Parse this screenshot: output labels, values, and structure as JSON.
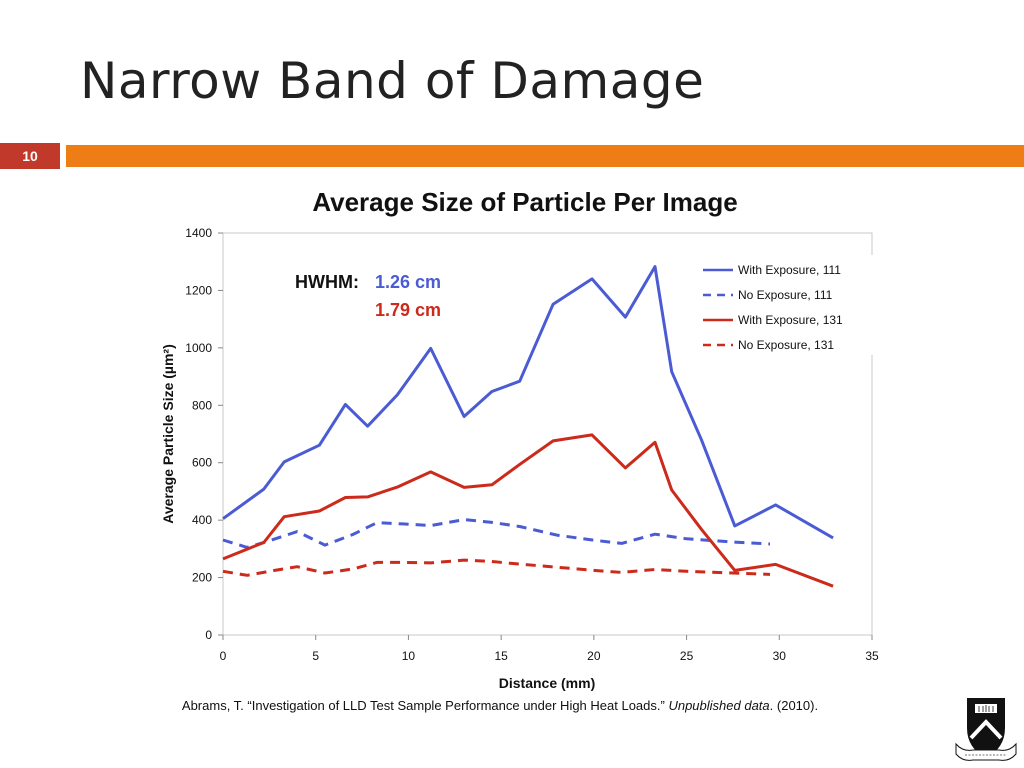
{
  "slide": {
    "title": "Narrow Band of Damage",
    "number": "10",
    "colors": {
      "number_box": "#C0392B",
      "accent_bar": "#EE7D16"
    }
  },
  "citation": {
    "prefix": "Abrams, T. “Investigation of LLD Test Sample Performance under High Heat Loads.” ",
    "source": "Unpublished data",
    "suffix": ". (2010)."
  },
  "logo": {
    "name": "university-crest",
    "motto": "DEI SUB NUMINE VIGET"
  },
  "chart_data": {
    "type": "line",
    "title": "Average Size of Particle Per Image",
    "xlabel": "Distance (mm)",
    "ylabel": "Average Particle Size (µm²)",
    "xlim": [
      0,
      35
    ],
    "ylim": [
      0,
      1400
    ],
    "x_ticks": [
      0,
      5,
      10,
      15,
      20,
      25,
      30,
      35
    ],
    "y_ticks": [
      0,
      200,
      400,
      600,
      800,
      1000,
      1200,
      1400
    ],
    "grid": false,
    "legend_position": "top-right",
    "annotation": {
      "label": "HWHM:",
      "values": [
        {
          "text": "1.26 cm",
          "color": "#4A5BD4"
        },
        {
          "text": "1.79 cm",
          "color": "#CC2A1A"
        }
      ]
    },
    "series": [
      {
        "name": "With Exposure, 111",
        "color": "#4A5BD4",
        "dash": "solid",
        "x": [
          0,
          2.2,
          3.3,
          5.2,
          6.6,
          7.8,
          9.4,
          11.2,
          13,
          14.5,
          16,
          17.8,
          19.9,
          21.7,
          23.3,
          24.2,
          25.8,
          27.6,
          29.8,
          32.9
        ],
        "y": [
          405,
          508,
          603,
          661,
          803,
          727,
          836,
          998,
          761,
          848,
          884,
          1152,
          1240,
          1107,
          1283,
          917,
          680,
          380,
          453,
          338
        ]
      },
      {
        "name": "No Exposure, 111",
        "color": "#4A5BD4",
        "dash": "dashed",
        "x": [
          0,
          1.3,
          2.2,
          4,
          5.5,
          7,
          8.3,
          9.7,
          11.2,
          13,
          14.5,
          16,
          18,
          20,
          21.5,
          23.3,
          25,
          27.5,
          29.5
        ],
        "y": [
          331,
          305,
          322,
          360,
          313,
          350,
          391,
          387,
          381,
          402,
          392,
          378,
          348,
          330,
          319,
          351,
          335,
          324,
          317
        ]
      },
      {
        "name": "With Exposure, 131",
        "color": "#CC2A1A",
        "dash": "solid",
        "x": [
          0,
          2.2,
          3.3,
          5.2,
          6.6,
          7.8,
          9.4,
          11.2,
          13,
          14.5,
          16,
          17.8,
          19.9,
          21.7,
          23.3,
          24.2,
          25.8,
          27.6,
          29.8,
          32.9
        ],
        "y": [
          265,
          322,
          412,
          432,
          479,
          481,
          515,
          568,
          514,
          523,
          594,
          676,
          697,
          582,
          671,
          505,
          368,
          225,
          246,
          170
        ]
      },
      {
        "name": "No Exposure, 131",
        "color": "#CC2A1A",
        "dash": "dashed",
        "x": [
          0,
          1.3,
          2.5,
          4,
          5.5,
          7,
          8.3,
          9.7,
          11.2,
          13,
          14.5,
          16,
          18,
          20,
          21.5,
          23.3,
          25,
          27.5,
          29.5
        ],
        "y": [
          222,
          208,
          222,
          238,
          216,
          230,
          253,
          253,
          251,
          261,
          256,
          247,
          236,
          225,
          218,
          228,
          222,
          216,
          211
        ]
      }
    ]
  }
}
